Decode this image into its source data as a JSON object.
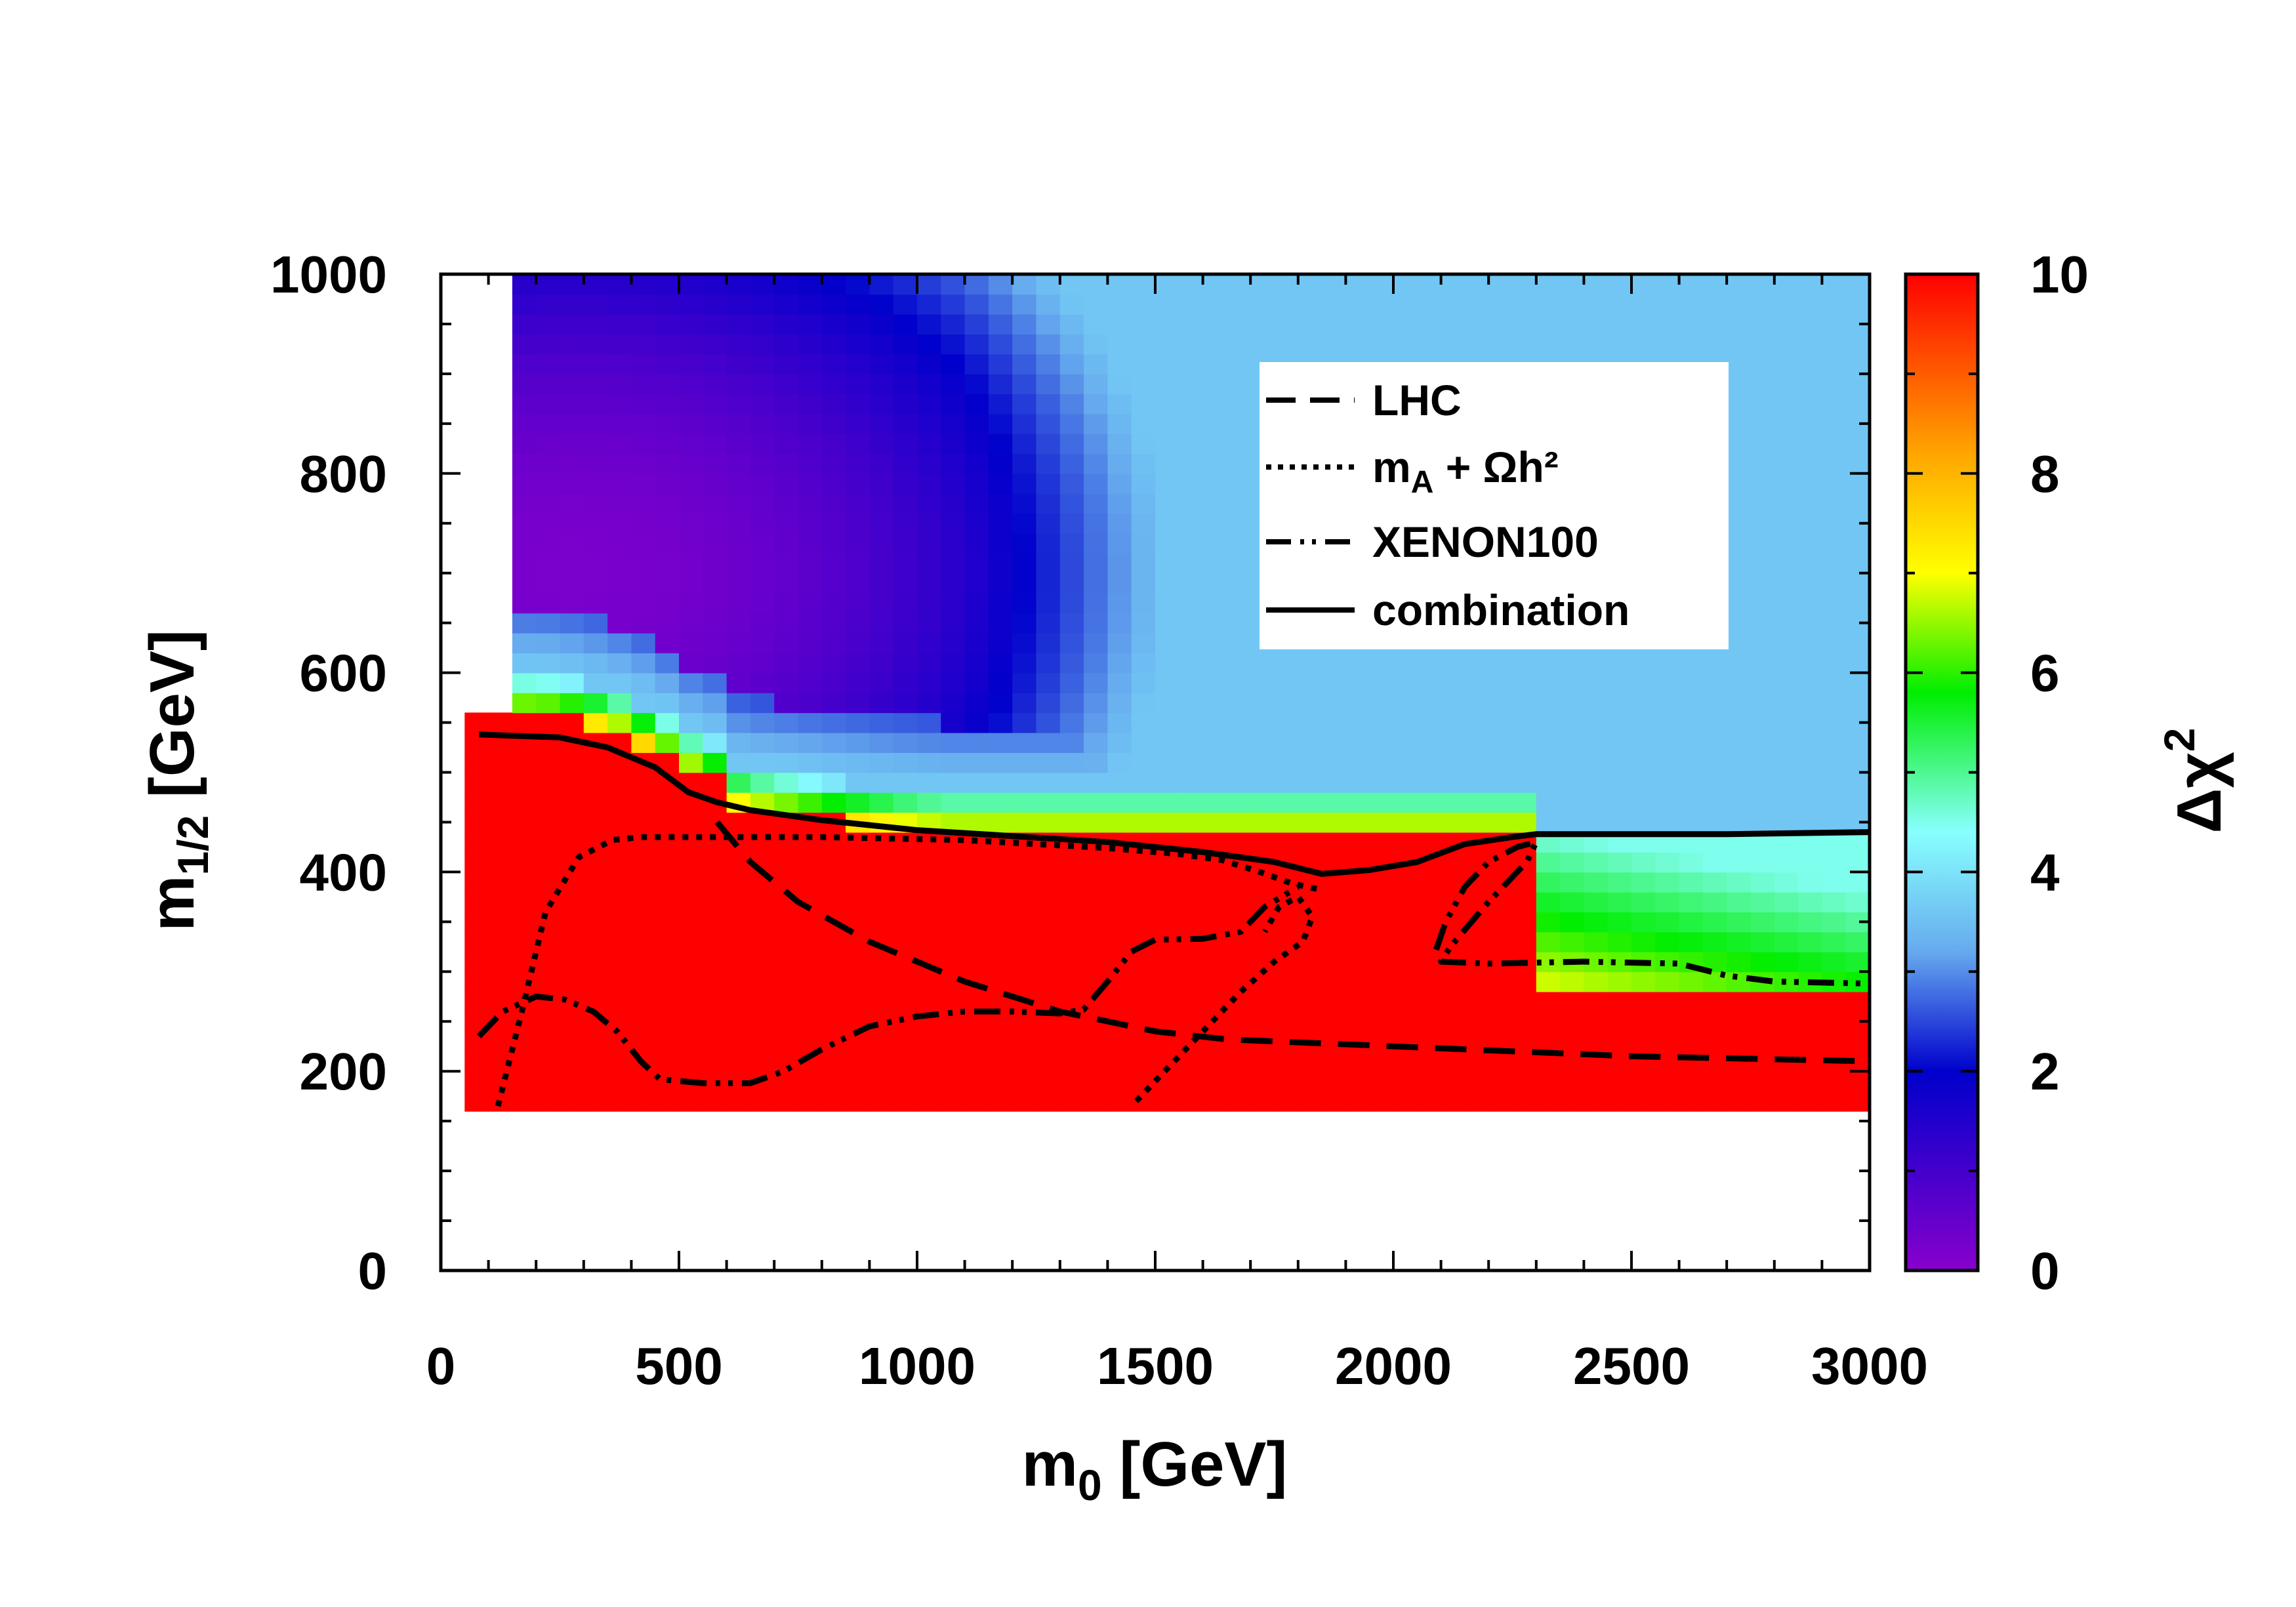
{
  "chart_data": {
    "type": "heatmap",
    "title": "",
    "xlabel": {
      "main": "m",
      "sub": "0",
      "unit": " [GeV]"
    },
    "ylabel": {
      "main": "m",
      "sub": "1/2",
      "unit": " [GeV]"
    },
    "xlim": [
      0,
      3000
    ],
    "ylim": [
      0,
      1000
    ],
    "x_ticks": [
      0,
      500,
      1000,
      1500,
      2000,
      2500,
      3000
    ],
    "x_tick_labels": [
      "0",
      "500",
      "1000",
      "1500",
      "2000",
      "2500",
      "3000"
    ],
    "y_ticks": [
      0,
      200,
      400,
      600,
      800,
      1000
    ],
    "y_tick_labels": [
      "0",
      "200",
      "400",
      "600",
      "800",
      "1000"
    ],
    "colorbar": {
      "label": {
        "main": "Δχ",
        "sup": "2"
      },
      "range": [
        0,
        10
      ],
      "ticks": [
        0,
        2,
        4,
        6,
        8,
        10
      ],
      "tick_labels": [
        "0",
        "2",
        "4",
        "6",
        "8",
        "10"
      ],
      "palette": [
        "#8800cc",
        "#0000cc",
        "#66aaee",
        "#88ffff",
        "#00ee00",
        "#ffff00",
        "#ffa500",
        "#ff0000"
      ]
    },
    "data_region": {
      "x_range": [
        70,
        3000
      ],
      "y_range": [
        160,
        1000
      ],
      "excluded_empty": "m0 < ~170 above m1/2 ~ 560; below m1/2 = 160"
    },
    "regions": [
      {
        "name": "excluded (Δχ² ≥ 10)",
        "value": 10,
        "approx_bounds": "m1/2 < ~440-560 for m0 < 2300; m1/2 < ~290 for m0 > 2300"
      },
      {
        "name": "minimum",
        "value": 0.2,
        "approx_location": [
          250,
          700
        ]
      },
      {
        "name": "high-m0 strip",
        "value": 6.5,
        "approx_bounds": "m0 2150-3000, m1/2 290-430"
      }
    ],
    "legend": {
      "position": "top-right",
      "entries": [
        {
          "label": "LHC",
          "style": "dashed"
        },
        {
          "label_main": "m",
          "label_sub": "A",
          "label_rest": " + Ωh²",
          "style": "dotted"
        },
        {
          "label": "XENON100",
          "style": "dash-dot-dot"
        },
        {
          "label": "combination",
          "style": "solid"
        }
      ]
    },
    "series": [
      {
        "name": "LHC",
        "style": "dashed",
        "x": [
          580,
          650,
          750,
          900,
          1100,
          1300,
          1500,
          1650,
          2000,
          2500,
          3000
        ],
        "y": [
          450,
          410,
          370,
          330,
          290,
          260,
          240,
          232,
          225,
          215,
          210
        ]
      },
      {
        "name": "mA + Ωh²",
        "style": "dotted",
        "branch": 1,
        "x": [
          120,
          170,
          220,
          290,
          360,
          420,
          550,
          800,
          1100,
          1400,
          1550,
          1640,
          1720,
          1790,
          1850
        ],
        "y": [
          165,
          260,
          360,
          415,
          432,
          435,
          435,
          435,
          432,
          424,
          418,
          412,
          400,
          388,
          382
        ]
      },
      {
        "name": "mA + Ωh²",
        "style": "dotted",
        "branch": 2,
        "x": [
          1460,
          1520,
          1600,
          1680,
          1750,
          1810,
          1830,
          1800,
          1760,
          1730
        ],
        "y": [
          170,
          200,
          240,
          280,
          310,
          330,
          355,
          375,
          365,
          340
        ]
      },
      {
        "name": "XENON100",
        "style": "dash-dot-dot",
        "branch": 1,
        "x": [
          80,
          130,
          200,
          260,
          320,
          370,
          420,
          460,
          550,
          650,
          720,
          800,
          900,
          1000,
          1100,
          1200,
          1300,
          1350,
          1400,
          1450,
          1500,
          1600,
          1680,
          1730,
          1800
        ],
        "y": [
          235,
          260,
          275,
          272,
          260,
          240,
          210,
          192,
          188,
          188,
          200,
          222,
          245,
          255,
          260,
          260,
          258,
          262,
          290,
          320,
          332,
          333,
          340,
          365,
          385
        ]
      },
      {
        "name": "XENON100",
        "style": "dash-dot-dot",
        "branch": 2,
        "x": [
          2090,
          2110,
          2150,
          2200,
          2260,
          2300,
          2280,
          2200,
          2120,
          2100,
          2200,
          2400,
          2600,
          2700,
          2800,
          3000
        ],
        "y": [
          322,
          350,
          385,
          410,
          425,
          430,
          410,
          370,
          325,
          310,
          308,
          310,
          308,
          296,
          290,
          288
        ]
      },
      {
        "name": "combination",
        "style": "solid",
        "x": [
          80,
          250,
          350,
          450,
          520,
          580,
          650,
          800,
          1000,
          1200,
          1400,
          1600,
          1750,
          1850,
          1950,
          2050,
          2150,
          2250,
          2300,
          2500,
          2700,
          3000
        ],
        "y": [
          538,
          535,
          525,
          505,
          480,
          470,
          462,
          452,
          442,
          436,
          430,
          420,
          410,
          398,
          402,
          410,
          428,
          435,
          438,
          438,
          438,
          440
        ]
      }
    ]
  }
}
